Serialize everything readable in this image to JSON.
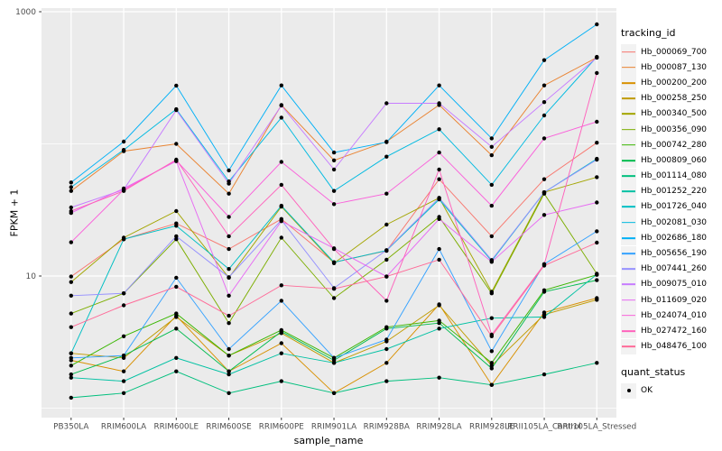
{
  "chart_data": {
    "type": "line",
    "title": "",
    "xlabel": "sample_name",
    "ylabel": "FPKM + 1",
    "y_scale": "log10",
    "y_tick_labels": [
      "1000",
      "10"
    ],
    "y_tick_values": [
      1000,
      10
    ],
    "y_minor_gridline_values": [
      100,
      1
    ],
    "ylim": [
      0.85,
      1065
    ],
    "grid": true,
    "legend_position": "right",
    "legend_title": "tracking_id",
    "legend2_title": "quant_status",
    "legend2_items": [
      "OK"
    ],
    "marker": "small filled black point on every value",
    "categories": [
      "PB350LA",
      "RRIM600LA",
      "RRIM600LE",
      "RRIM600SE",
      "RRIM600PE",
      "RRIM901LA",
      "RRIM928BA",
      "RRIM928LA",
      "RRIM928LE",
      "RRII105LA_Control",
      "RRII105LA_Stressed"
    ],
    "series": [
      {
        "name": "Hb_000069_700",
        "color": "#F8766D",
        "values": [
          9.9,
          19,
          25,
          16,
          27,
          12.7,
          15.5,
          54,
          20,
          54,
          102
        ]
      },
      {
        "name": "Hb_000087_130",
        "color": "#EA8331",
        "values": [
          44,
          88,
          100,
          42,
          197,
          75,
          104,
          197,
          82,
          277,
          450
        ]
      },
      {
        "name": "Hb_000200_200",
        "color": "#D89000",
        "values": [
          2.3,
          1.9,
          5.0,
          1.9,
          3.1,
          1.3,
          2.2,
          6.1,
          1.5,
          5.3,
          6.8
        ]
      },
      {
        "name": "Hb_000258_250",
        "color": "#C09B00",
        "values": [
          2.6,
          2.4,
          4.9,
          2.5,
          3.7,
          2.2,
          3.2,
          6.0,
          2.1,
          5.1,
          6.6
        ]
      },
      {
        "name": "Hb_000340_500",
        "color": "#A3A500",
        "values": [
          9.0,
          19.5,
          31,
          9.7,
          33.5,
          12.5,
          24.5,
          39,
          7.6,
          43,
          56
        ]
      },
      {
        "name": "Hb_000356_090",
        "color": "#7CAE00",
        "values": [
          5.2,
          7.4,
          19,
          4.4,
          19.5,
          6.8,
          13.3,
          28,
          7.4,
          42,
          10.4
        ]
      },
      {
        "name": "Hb_000742_280",
        "color": "#39B600",
        "values": [
          2.1,
          3.5,
          5.2,
          2.5,
          3.9,
          2.4,
          4.1,
          4.6,
          2.2,
          7.8,
          10.2
        ]
      },
      {
        "name": "Hb_000809_060",
        "color": "#00BB4E",
        "values": [
          1.8,
          2.5,
          4.0,
          1.9,
          3.8,
          2.3,
          4.0,
          4.4,
          2.0,
          7.6,
          9.3
        ]
      },
      {
        "name": "Hb_001114_080",
        "color": "#00BF7D",
        "values": [
          1.2,
          1.3,
          1.9,
          1.3,
          1.6,
          1.3,
          1.6,
          1.7,
          1.5,
          1.8,
          2.2
        ]
      },
      {
        "name": "Hb_001252_220",
        "color": "#00C1A3",
        "values": [
          1.7,
          1.6,
          2.4,
          1.8,
          2.6,
          2.2,
          2.8,
          4.0,
          4.8,
          4.9,
          10.3
        ]
      },
      {
        "name": "Hb_001726_040",
        "color": "#00BFC4",
        "values": [
          2.6,
          19,
          24,
          11.3,
          34,
          12.7,
          15.6,
          38,
          13,
          43,
          77
        ]
      },
      {
        "name": "Hb_002081_030",
        "color": "#00BAE0",
        "values": [
          47,
          90,
          183,
          52,
          158,
          44,
          80,
          129,
          49,
          164,
          455
        ]
      },
      {
        "name": "Hb_002686_180",
        "color": "#00B0F6",
        "values": [
          51,
          104,
          276,
          63,
          277,
          86,
          103,
          277,
          110,
          430,
          803
        ]
      },
      {
        "name": "Hb_005656_190",
        "color": "#35A2FF",
        "values": [
          2.4,
          2.5,
          9.7,
          2.8,
          6.5,
          2.4,
          3.3,
          16,
          2.7,
          12.3,
          21.8
        ]
      },
      {
        "name": "Hb_007441_260",
        "color": "#9590FF",
        "values": [
          7.1,
          7.4,
          20,
          9.8,
          26.5,
          8.1,
          15.7,
          39,
          13.2,
          43,
          76
        ]
      },
      {
        "name": "Hb_009075_010",
        "color": "#C77CFF",
        "values": [
          33,
          45,
          180,
          50,
          195,
          64,
          203,
          203,
          95,
          207,
          449
        ]
      },
      {
        "name": "Hb_011609_020",
        "color": "#E76BF3",
        "values": [
          30,
          46,
          74,
          7.1,
          26,
          16.2,
          9.9,
          27,
          12.8,
          29,
          36
        ]
      },
      {
        "name": "Hb_024074_010",
        "color": "#FA62DB",
        "values": [
          18,
          45,
          75,
          28,
          73,
          35,
          42,
          86,
          34,
          110,
          147
        ]
      },
      {
        "name": "Hb_027472_160",
        "color": "#FF62BC",
        "values": [
          31,
          44,
          76,
          20,
          49,
          16,
          6.5,
          64,
          3.6,
          12.2,
          344
        ]
      },
      {
        "name": "Hb_048476_100",
        "color": "#FF6A98",
        "values": [
          4.1,
          6.0,
          8.3,
          5.0,
          8.5,
          8.0,
          9.9,
          13.3,
          3.5,
          12.0,
          17.9
        ]
      }
    ]
  },
  "style": {
    "background": "#FFFFFF",
    "panel_bg": "#EBEBEB",
    "gridline": "#FFFFFF",
    "tick_mark": "#333333",
    "tick_label_color": "#4D4D4D",
    "axis_title_color": "#000000",
    "point_color": "#000000",
    "legend_key_bg": "#F2F2F2"
  }
}
